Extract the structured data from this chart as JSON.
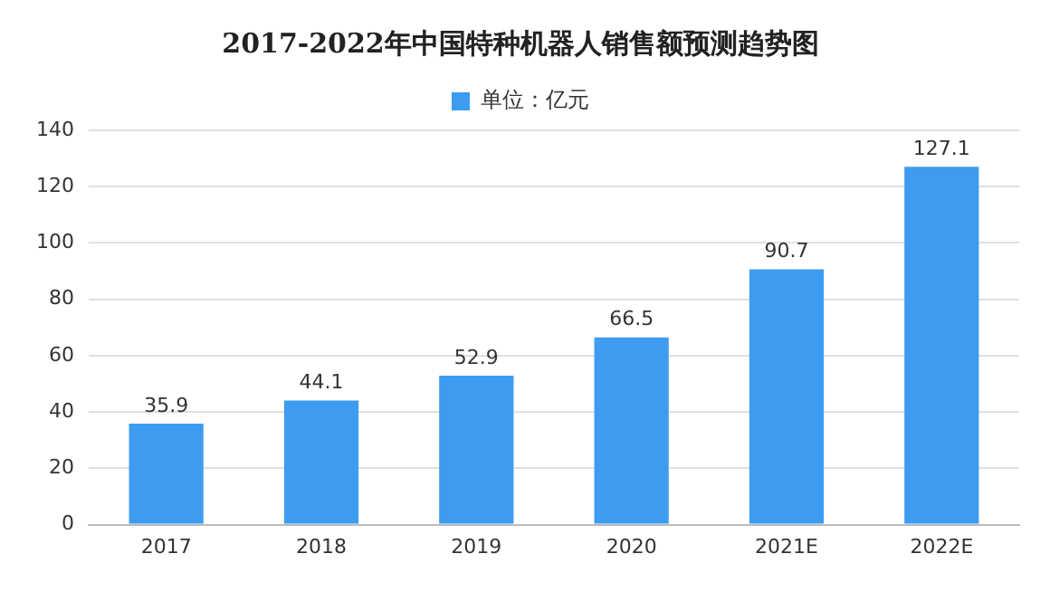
{
  "chart_data": {
    "type": "bar",
    "title": "2017-2022年中国特种机器人销售额预测趋势图",
    "categories": [
      "2017",
      "2018",
      "2019",
      "2020",
      "2021E",
      "2022E"
    ],
    "series": [
      {
        "name": "单位：亿元",
        "color": "#3d9cf0",
        "values": [
          35.9,
          44.1,
          52.9,
          66.5,
          90.7,
          127.1
        ]
      }
    ],
    "ylim": [
      0,
      140
    ],
    "yticks": [
      0,
      20,
      40,
      60,
      80,
      100,
      120,
      140
    ],
    "grid": "y",
    "legend": "top",
    "data_labels": true
  }
}
